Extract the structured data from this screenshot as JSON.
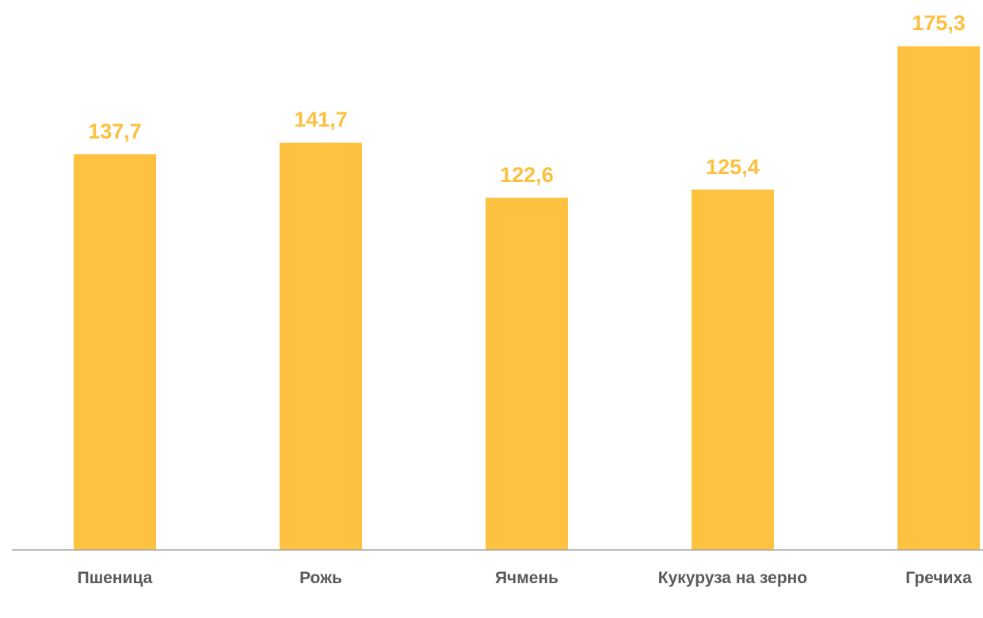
{
  "chart_data": {
    "type": "bar",
    "categories": [
      "Пшеница",
      "Рожь",
      "Ячмень",
      "Кукуруза на зерно",
      "Гречиха"
    ],
    "values": [
      137.7,
      141.7,
      122.6,
      125.4,
      175.3
    ],
    "value_labels": [
      "137,7",
      "141,7",
      "122,6",
      "125,4",
      "175,3"
    ],
    "color": "#fec240",
    "ylim": [
      0,
      190
    ]
  }
}
